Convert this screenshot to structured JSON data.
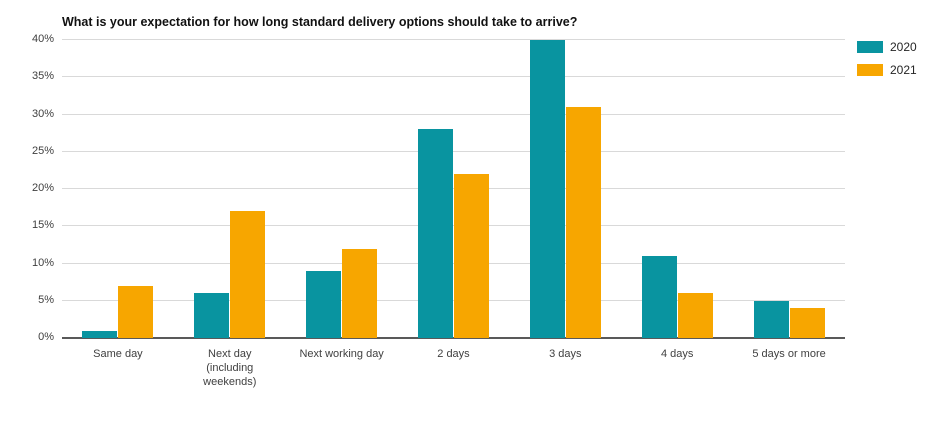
{
  "colors": {
    "series_2020": "#0994A0",
    "series_2021": "#F7A600",
    "gridline": "#D9D9D9",
    "axis_line": "#595959",
    "tick_label": "#404040",
    "title": "#111111"
  },
  "chart_data": {
    "type": "bar",
    "title": "What is your expectation for how long standard delivery options should take to arrive?",
    "categories": [
      "Same day",
      "Next day (including weekends)",
      "Next working day",
      "2 days",
      "3 days",
      "4 days",
      "5 days or more"
    ],
    "category_lines": [
      [
        "Same day"
      ],
      [
        "Next day",
        "(including",
        "weekends)"
      ],
      [
        "Next working day"
      ],
      [
        "2 days"
      ],
      [
        "3 days"
      ],
      [
        "4 days"
      ],
      [
        "5 days or more"
      ]
    ],
    "series": [
      {
        "name": "2020",
        "color": "#0994A0",
        "values": [
          1,
          6,
          9,
          28,
          40,
          11,
          5
        ]
      },
      {
        "name": "2021",
        "color": "#F7A600",
        "values": [
          7,
          17,
          12,
          22,
          31,
          6,
          4
        ]
      }
    ],
    "xlabel": "",
    "ylabel": "",
    "ylim": [
      0,
      40
    ],
    "ytick_step": 5,
    "ytick_labels": [
      "0%",
      "5%",
      "10%",
      "15%",
      "20%",
      "25%",
      "30%",
      "35%",
      "40%"
    ],
    "grid": true,
    "legend_position": "top-right"
  }
}
